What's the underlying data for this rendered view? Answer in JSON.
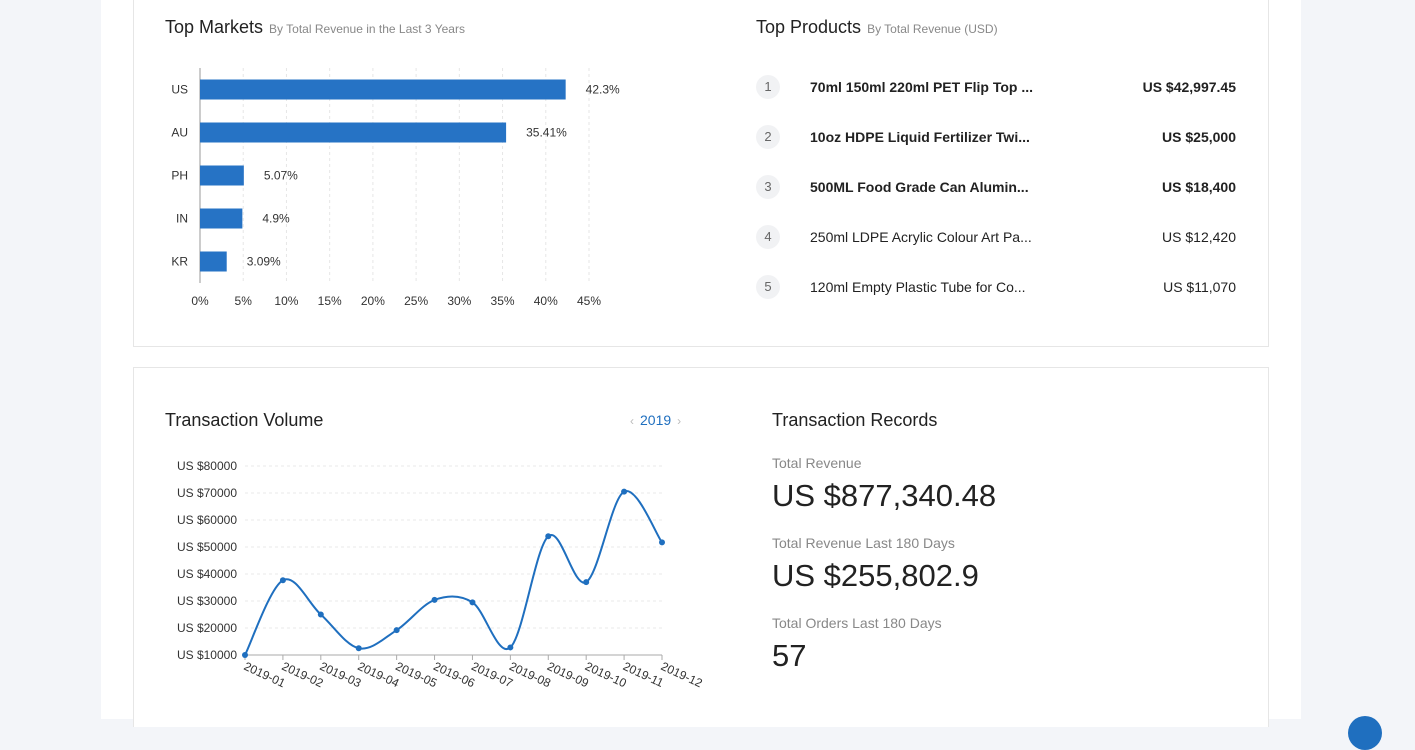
{
  "top_markets": {
    "title": "Top Markets",
    "subtitle": "By Total Revenue in the Last 3 Years"
  },
  "top_products": {
    "title": "Top Products",
    "subtitle": "By Total Revenue (USD)",
    "items": [
      {
        "rank": "1",
        "name": "70ml 150ml 220ml PET Flip Top ...",
        "value": "US $42,997.45"
      },
      {
        "rank": "2",
        "name": "10oz HDPE Liquid Fertilizer Twi...",
        "value": "US $25,000"
      },
      {
        "rank": "3",
        "name": "500ML Food Grade Can Alumin...",
        "value": "US $18,400"
      },
      {
        "rank": "4",
        "name": "250ml LDPE Acrylic Colour Art Pa...",
        "value": "US $12,420"
      },
      {
        "rank": "5",
        "name": "120ml Empty Plastic Tube for Co...",
        "value": "US $11,070"
      }
    ]
  },
  "transaction_volume": {
    "title": "Transaction Volume",
    "year": "2019",
    "prev_icon": "chevron-left-icon",
    "next_icon": "chevron-right-icon"
  },
  "transaction_records": {
    "title": "Transaction Records",
    "total_revenue_label": "Total Revenue",
    "total_revenue_value": "US $877,340.48",
    "revenue_180_label": "Total Revenue Last 180 Days",
    "revenue_180_value": "US $255,802.9",
    "orders_180_label": "Total Orders Last 180 Days",
    "orders_180_value": "57"
  },
  "colors": {
    "bar": "#2673c5",
    "line": "#1f6fbf",
    "accent": "#1f6fbf"
  },
  "chart_data": [
    {
      "type": "bar",
      "orientation": "horizontal",
      "categories": [
        "US",
        "AU",
        "PH",
        "IN",
        "KR"
      ],
      "values": [
        42.3,
        35.41,
        5.07,
        4.9,
        3.09
      ],
      "value_labels": [
        "42.3%",
        "35.41%",
        "5.07%",
        "4.9%",
        "3.09%"
      ],
      "xlim": [
        0,
        45
      ],
      "x_ticks": [
        "0%",
        "5%",
        "10%",
        "15%",
        "20%",
        "25%",
        "30%",
        "35%",
        "40%",
        "45%"
      ],
      "grid": true
    },
    {
      "type": "line",
      "x": [
        "2019-01",
        "2019-02",
        "2019-03",
        "2019-04",
        "2019-05",
        "2019-06",
        "2019-07",
        "2019-08",
        "2019-09",
        "2019-10",
        "2019-11",
        "2019-12"
      ],
      "values": [
        10000,
        37700,
        25000,
        12500,
        19200,
        30400,
        29500,
        12800,
        54000,
        37000,
        70500,
        51700
      ],
      "ylim": [
        10000,
        80000
      ],
      "y_ticks": [
        "US $10000",
        "US $20000",
        "US $30000",
        "US $40000",
        "US $50000",
        "US $60000",
        "US $70000",
        "US $80000"
      ],
      "smooth": true,
      "grid": true
    }
  ]
}
